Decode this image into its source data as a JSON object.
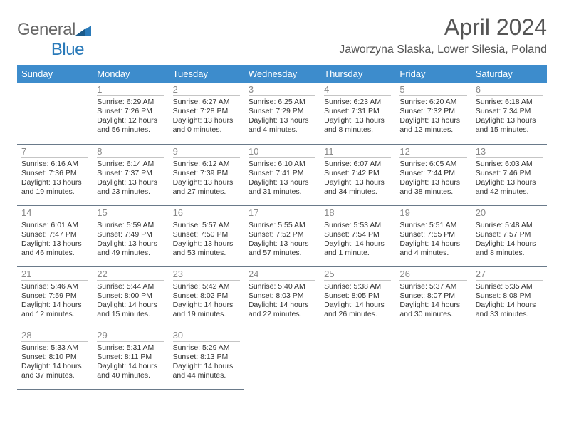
{
  "logo": {
    "part1": "General",
    "part2": "Blue"
  },
  "title": "April 2024",
  "location": "Jaworzyna Slaska, Lower Silesia, Poland",
  "colors": {
    "header_bg": "#3d8ccc",
    "header_text": "#ffffff",
    "logo_gray": "#666666",
    "logo_blue": "#2a7ab9",
    "daynum": "#888888",
    "border": "#6a7a8a"
  },
  "weekdays": [
    "Sunday",
    "Monday",
    "Tuesday",
    "Wednesday",
    "Thursday",
    "Friday",
    "Saturday"
  ],
  "weeks": [
    [
      null,
      {
        "n": "1",
        "sr": "Sunrise: 6:29 AM",
        "ss": "Sunset: 7:26 PM",
        "dl1": "Daylight: 12 hours",
        "dl2": "and 56 minutes."
      },
      {
        "n": "2",
        "sr": "Sunrise: 6:27 AM",
        "ss": "Sunset: 7:28 PM",
        "dl1": "Daylight: 13 hours",
        "dl2": "and 0 minutes."
      },
      {
        "n": "3",
        "sr": "Sunrise: 6:25 AM",
        "ss": "Sunset: 7:29 PM",
        "dl1": "Daylight: 13 hours",
        "dl2": "and 4 minutes."
      },
      {
        "n": "4",
        "sr": "Sunrise: 6:23 AM",
        "ss": "Sunset: 7:31 PM",
        "dl1": "Daylight: 13 hours",
        "dl2": "and 8 minutes."
      },
      {
        "n": "5",
        "sr": "Sunrise: 6:20 AM",
        "ss": "Sunset: 7:32 PM",
        "dl1": "Daylight: 13 hours",
        "dl2": "and 12 minutes."
      },
      {
        "n": "6",
        "sr": "Sunrise: 6:18 AM",
        "ss": "Sunset: 7:34 PM",
        "dl1": "Daylight: 13 hours",
        "dl2": "and 15 minutes."
      }
    ],
    [
      {
        "n": "7",
        "sr": "Sunrise: 6:16 AM",
        "ss": "Sunset: 7:36 PM",
        "dl1": "Daylight: 13 hours",
        "dl2": "and 19 minutes."
      },
      {
        "n": "8",
        "sr": "Sunrise: 6:14 AM",
        "ss": "Sunset: 7:37 PM",
        "dl1": "Daylight: 13 hours",
        "dl2": "and 23 minutes."
      },
      {
        "n": "9",
        "sr": "Sunrise: 6:12 AM",
        "ss": "Sunset: 7:39 PM",
        "dl1": "Daylight: 13 hours",
        "dl2": "and 27 minutes."
      },
      {
        "n": "10",
        "sr": "Sunrise: 6:10 AM",
        "ss": "Sunset: 7:41 PM",
        "dl1": "Daylight: 13 hours",
        "dl2": "and 31 minutes."
      },
      {
        "n": "11",
        "sr": "Sunrise: 6:07 AM",
        "ss": "Sunset: 7:42 PM",
        "dl1": "Daylight: 13 hours",
        "dl2": "and 34 minutes."
      },
      {
        "n": "12",
        "sr": "Sunrise: 6:05 AM",
        "ss": "Sunset: 7:44 PM",
        "dl1": "Daylight: 13 hours",
        "dl2": "and 38 minutes."
      },
      {
        "n": "13",
        "sr": "Sunrise: 6:03 AM",
        "ss": "Sunset: 7:46 PM",
        "dl1": "Daylight: 13 hours",
        "dl2": "and 42 minutes."
      }
    ],
    [
      {
        "n": "14",
        "sr": "Sunrise: 6:01 AM",
        "ss": "Sunset: 7:47 PM",
        "dl1": "Daylight: 13 hours",
        "dl2": "and 46 minutes."
      },
      {
        "n": "15",
        "sr": "Sunrise: 5:59 AM",
        "ss": "Sunset: 7:49 PM",
        "dl1": "Daylight: 13 hours",
        "dl2": "and 49 minutes."
      },
      {
        "n": "16",
        "sr": "Sunrise: 5:57 AM",
        "ss": "Sunset: 7:50 PM",
        "dl1": "Daylight: 13 hours",
        "dl2": "and 53 minutes."
      },
      {
        "n": "17",
        "sr": "Sunrise: 5:55 AM",
        "ss": "Sunset: 7:52 PM",
        "dl1": "Daylight: 13 hours",
        "dl2": "and 57 minutes."
      },
      {
        "n": "18",
        "sr": "Sunrise: 5:53 AM",
        "ss": "Sunset: 7:54 PM",
        "dl1": "Daylight: 14 hours",
        "dl2": "and 1 minute."
      },
      {
        "n": "19",
        "sr": "Sunrise: 5:51 AM",
        "ss": "Sunset: 7:55 PM",
        "dl1": "Daylight: 14 hours",
        "dl2": "and 4 minutes."
      },
      {
        "n": "20",
        "sr": "Sunrise: 5:48 AM",
        "ss": "Sunset: 7:57 PM",
        "dl1": "Daylight: 14 hours",
        "dl2": "and 8 minutes."
      }
    ],
    [
      {
        "n": "21",
        "sr": "Sunrise: 5:46 AM",
        "ss": "Sunset: 7:59 PM",
        "dl1": "Daylight: 14 hours",
        "dl2": "and 12 minutes."
      },
      {
        "n": "22",
        "sr": "Sunrise: 5:44 AM",
        "ss": "Sunset: 8:00 PM",
        "dl1": "Daylight: 14 hours",
        "dl2": "and 15 minutes."
      },
      {
        "n": "23",
        "sr": "Sunrise: 5:42 AM",
        "ss": "Sunset: 8:02 PM",
        "dl1": "Daylight: 14 hours",
        "dl2": "and 19 minutes."
      },
      {
        "n": "24",
        "sr": "Sunrise: 5:40 AM",
        "ss": "Sunset: 8:03 PM",
        "dl1": "Daylight: 14 hours",
        "dl2": "and 22 minutes."
      },
      {
        "n": "25",
        "sr": "Sunrise: 5:38 AM",
        "ss": "Sunset: 8:05 PM",
        "dl1": "Daylight: 14 hours",
        "dl2": "and 26 minutes."
      },
      {
        "n": "26",
        "sr": "Sunrise: 5:37 AM",
        "ss": "Sunset: 8:07 PM",
        "dl1": "Daylight: 14 hours",
        "dl2": "and 30 minutes."
      },
      {
        "n": "27",
        "sr": "Sunrise: 5:35 AM",
        "ss": "Sunset: 8:08 PM",
        "dl1": "Daylight: 14 hours",
        "dl2": "and 33 minutes."
      }
    ],
    [
      {
        "n": "28",
        "sr": "Sunrise: 5:33 AM",
        "ss": "Sunset: 8:10 PM",
        "dl1": "Daylight: 14 hours",
        "dl2": "and 37 minutes."
      },
      {
        "n": "29",
        "sr": "Sunrise: 5:31 AM",
        "ss": "Sunset: 8:11 PM",
        "dl1": "Daylight: 14 hours",
        "dl2": "and 40 minutes."
      },
      {
        "n": "30",
        "sr": "Sunrise: 5:29 AM",
        "ss": "Sunset: 8:13 PM",
        "dl1": "Daylight: 14 hours",
        "dl2": "and 44 minutes."
      },
      null,
      null,
      null,
      null
    ]
  ]
}
